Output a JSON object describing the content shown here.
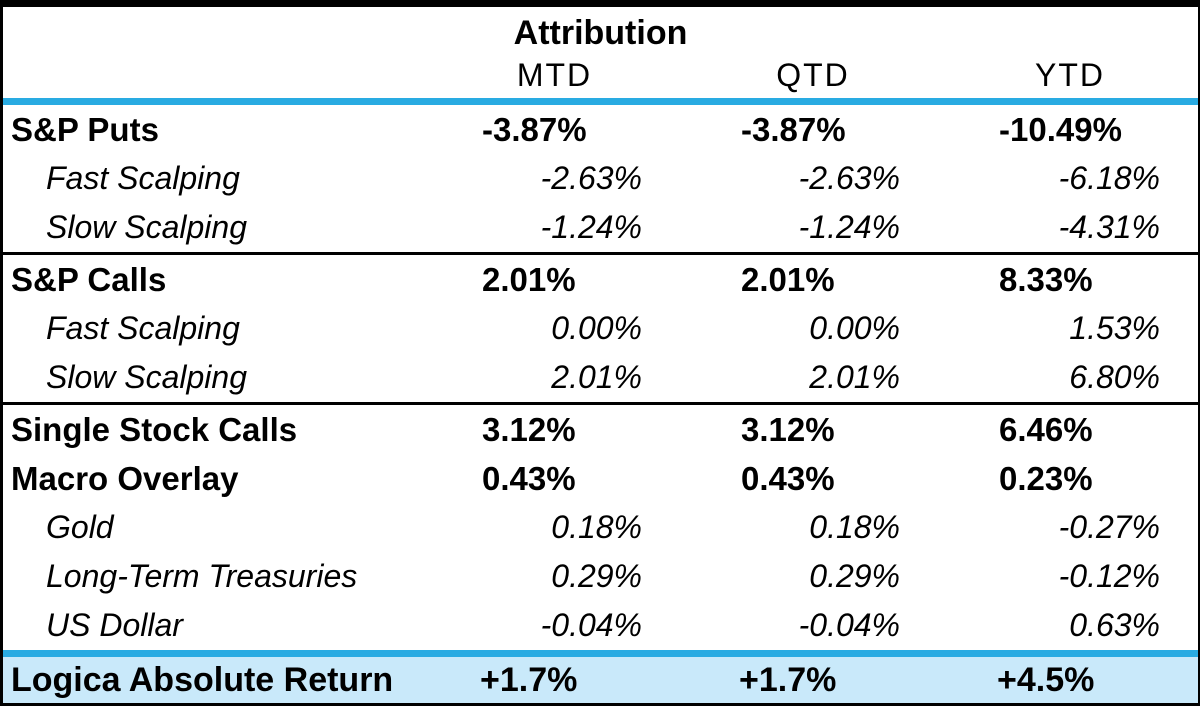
{
  "table": {
    "title": "Attribution",
    "columns": [
      "MTD",
      "QTD",
      "YTD"
    ],
    "rows": [
      {
        "type": "category",
        "label": "S&P Puts",
        "values": [
          "-3.87%",
          "-3.87%",
          "-10.49%"
        ]
      },
      {
        "type": "sub",
        "label": "Fast Scalping",
        "values": [
          "-2.63%",
          "-2.63%",
          "-6.18%"
        ]
      },
      {
        "type": "sub",
        "label": "Slow Scalping",
        "values": [
          "-1.24%",
          "-1.24%",
          "-4.31%"
        ]
      },
      {
        "type": "divider"
      },
      {
        "type": "category",
        "label": "S&P Calls",
        "values": [
          "2.01%",
          "2.01%",
          "8.33%"
        ]
      },
      {
        "type": "sub",
        "label": "Fast Scalping",
        "values": [
          "0.00%",
          "0.00%",
          "1.53%"
        ]
      },
      {
        "type": "sub",
        "label": "Slow Scalping",
        "values": [
          "2.01%",
          "2.01%",
          "6.80%"
        ]
      },
      {
        "type": "divider"
      },
      {
        "type": "category",
        "label": "Single Stock Calls",
        "values": [
          "3.12%",
          "3.12%",
          "6.46%"
        ]
      },
      {
        "type": "category",
        "label": "Macro Overlay",
        "values": [
          "0.43%",
          "0.43%",
          "0.23%"
        ]
      },
      {
        "type": "sub",
        "label": "Gold",
        "values": [
          "0.18%",
          "0.18%",
          "-0.27%"
        ]
      },
      {
        "type": "sub",
        "label": "Long-Term Treasuries",
        "values": [
          "0.29%",
          "0.29%",
          "-0.12%"
        ]
      },
      {
        "type": "sub",
        "label": "US Dollar",
        "values": [
          "-0.04%",
          "-0.04%",
          "0.63%"
        ]
      }
    ],
    "total_row": {
      "label": "Logica Absolute Return",
      "values": [
        "+1.7%",
        "+1.7%",
        "+4.5%"
      ]
    },
    "colors": {
      "accent_line": "#29ABE2",
      "total_row_background": "#C9E9FA",
      "divider": "#000000",
      "text": "#000000"
    }
  }
}
